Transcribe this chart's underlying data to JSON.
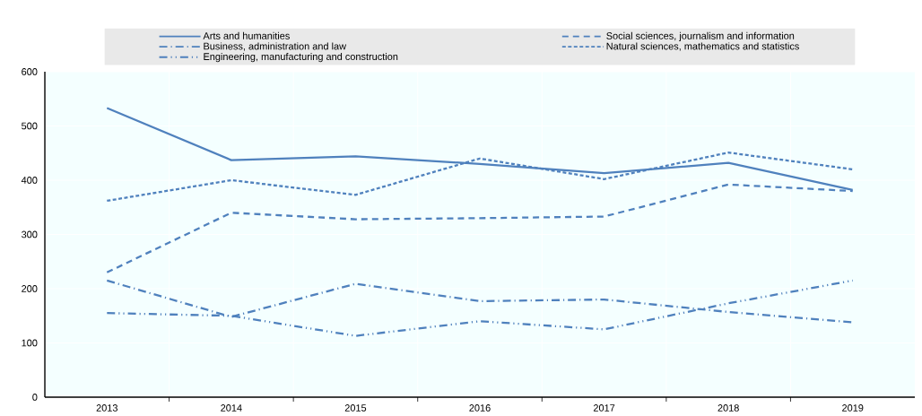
{
  "chart_data": {
    "type": "line",
    "categories": [
      "2013",
      "2014",
      "2015",
      "2016",
      "2017",
      "2018",
      "2019"
    ],
    "series": [
      {
        "name": "Arts and humanities",
        "color": "#4f81bd",
        "line_style": "solid",
        "values": [
          533,
          437,
          444,
          430,
          413,
          432,
          382
        ]
      },
      {
        "name": "Social sciences, journalism and information",
        "color": "#4f81bd",
        "line_style": "long dashed",
        "values": [
          230,
          340,
          328,
          330,
          333,
          392,
          380
        ]
      },
      {
        "name": "Business, administration and law",
        "color": "#4f81bd",
        "line_style": "dash dot",
        "values": [
          215,
          148,
          209,
          177,
          180,
          157,
          138
        ]
      },
      {
        "name": "Natural sciences, mathematics and statistics",
        "color": "#4f81bd",
        "line_style": "dashed",
        "values": [
          362,
          400,
          373,
          440,
          402,
          451,
          420
        ]
      },
      {
        "name": "Engineering, manufacturing and construction",
        "color": "#4f81bd",
        "line_style": "dash dot dot",
        "values": [
          155,
          150,
          113,
          140,
          125,
          173,
          215
        ]
      }
    ],
    "ylim": [
      0,
      600
    ],
    "yticks": [
      0,
      100,
      200,
      300,
      400,
      500,
      600
    ],
    "grid": true,
    "legend": "top"
  }
}
